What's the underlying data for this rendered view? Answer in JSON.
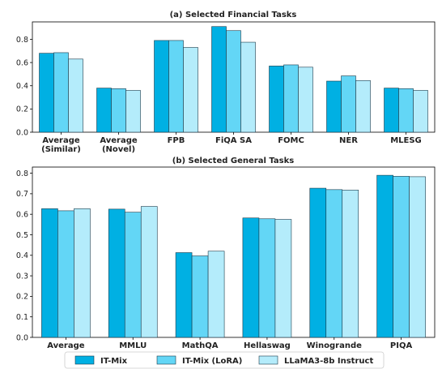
{
  "chart_data": [
    {
      "type": "bar",
      "title": "(a) Selected Financial Tasks",
      "categories": [
        [
          "Average",
          "(Similar)"
        ],
        [
          "Average",
          "(Novel)"
        ],
        [
          "FPB"
        ],
        [
          "FiQA SA"
        ],
        [
          "FOMC"
        ],
        [
          "NER"
        ],
        [
          "MLESG"
        ]
      ],
      "series": [
        {
          "name": "IT-Mix",
          "values": [
            0.68,
            0.38,
            0.79,
            0.91,
            0.57,
            0.44,
            0.38
          ]
        },
        {
          "name": "IT-Mix (LoRA)",
          "values": [
            0.685,
            0.375,
            0.79,
            0.875,
            0.58,
            0.485,
            0.375
          ]
        },
        {
          "name": "LLaMA3-8b Instruct",
          "values": [
            0.63,
            0.36,
            0.73,
            0.775,
            0.56,
            0.445,
            0.36
          ]
        }
      ],
      "ylim": [
        0,
        0.95
      ],
      "yticks": [
        "0.0",
        "0.2",
        "0.4",
        "0.6",
        "0.8"
      ],
      "grid": false
    },
    {
      "type": "bar",
      "title": "(b) Selected General Tasks",
      "categories": [
        [
          "Average"
        ],
        [
          "MMLU"
        ],
        [
          "MathQA"
        ],
        [
          "Hellaswag"
        ],
        [
          "Winogrande"
        ],
        [
          "PIQA"
        ]
      ],
      "series": [
        {
          "name": "IT-Mix",
          "values": [
            0.627,
            0.625,
            0.413,
            0.582,
            0.727,
            0.79
          ]
        },
        {
          "name": "IT-Mix (LoRA)",
          "values": [
            0.617,
            0.61,
            0.397,
            0.578,
            0.72,
            0.785
          ]
        },
        {
          "name": "LLaMA3-8b Instruct",
          "values": [
            0.627,
            0.638,
            0.42,
            0.575,
            0.718,
            0.783
          ]
        }
      ],
      "ylim": [
        0,
        0.83
      ],
      "yticks": [
        "0.0",
        "0.1",
        "0.2",
        "0.3",
        "0.4",
        "0.5",
        "0.6",
        "0.7",
        "0.8"
      ],
      "grid": false
    }
  ],
  "legend": {
    "position": "bottom-center",
    "items": [
      {
        "label": "IT-Mix",
        "color": "#00b0e3"
      },
      {
        "label": "IT-Mix (LoRA)",
        "color": "#63d6f6"
      },
      {
        "label": "LLaMA3-8b Instruct",
        "color": "#b4ecfb"
      }
    ]
  },
  "colors": [
    "#00b0e3",
    "#63d6f6",
    "#b4ecfb"
  ]
}
